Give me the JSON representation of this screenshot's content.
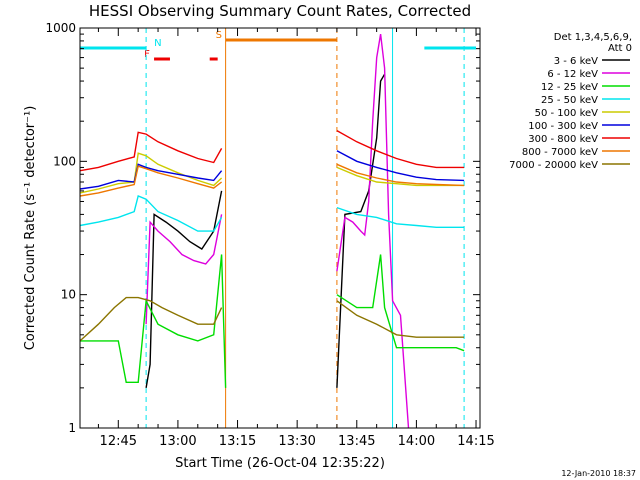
{
  "chart_data": {
    "type": "line",
    "title": "HESSI Observing Summary Count Rates, Corrected",
    "xlabel": "Start Time (26-Oct-04 12:35:22)",
    "ylabel": "Corrected Count Rate (s⁻¹ detector⁻¹)",
    "y_scale": "log",
    "ylim": [
      1,
      1000
    ],
    "xlim": [
      "12:35:22",
      "14:16"
    ],
    "x_ticks": [
      "12:45",
      "13:00",
      "13:15",
      "13:30",
      "13:45",
      "14:00",
      "14:15"
    ],
    "y_ticks": [
      "1",
      "10",
      "100",
      "1000"
    ],
    "legend_header": [
      "Det 1,3,4,5,6,9,",
      "Att 0"
    ],
    "legend_position": "right",
    "timestamp": "12-Jan-2010 18:37",
    "flags": [
      {
        "label": "N",
        "color": "#00e5ee",
        "segments": [
          [
            "12:35:22",
            "12:52"
          ],
          [
            "14:02",
            "14:15"
          ]
        ]
      },
      {
        "label": "F",
        "color": "#ee0000",
        "segments": [
          [
            "12:54",
            "12:58"
          ],
          [
            "13:08",
            "13:10"
          ]
        ]
      },
      {
        "label": "S",
        "color": "#ee7700",
        "segments": [
          [
            "13:12",
            "13:40"
          ]
        ]
      }
    ],
    "markers": [
      {
        "time": "12:35:22",
        "color": "#00e5ee",
        "style": "solid"
      },
      {
        "time": "12:52",
        "color": "#00e5ee",
        "style": "dashed"
      },
      {
        "time": "13:12",
        "color": "#ee7700",
        "style": "solid"
      },
      {
        "time": "13:40",
        "color": "#ee7700",
        "style": "dashed"
      },
      {
        "time": "13:54",
        "color": "#00e5ee",
        "style": "solid"
      },
      {
        "time": "14:12",
        "color": "#00e5ee",
        "style": "dashed"
      }
    ],
    "series": [
      {
        "name": "3 - 6 keV",
        "color": "#000000",
        "segments": [
          [
            [
              "12:52",
              2
            ],
            [
              "12:53",
              3
            ],
            [
              "12:54",
              40
            ],
            [
              "12:57",
              35
            ],
            [
              "13:00",
              30
            ],
            [
              "13:03",
              25
            ],
            [
              "13:06",
              22
            ],
            [
              "13:09",
              30
            ],
            [
              "13:11",
              60
            ]
          ],
          [
            [
              "13:40",
              2
            ],
            [
              "13:42",
              40
            ],
            [
              "13:46",
              42
            ],
            [
              "13:48",
              60
            ],
            [
              "13:50",
              150
            ],
            [
              "13:51",
              400
            ],
            [
              "13:52",
              450
            ]
          ]
        ]
      },
      {
        "name": "6 - 12 keV",
        "color": "#dd00dd",
        "segments": [
          [
            [
              "12:52",
              6
            ],
            [
              "12:53",
              35
            ],
            [
              "12:55",
              30
            ],
            [
              "12:58",
              25
            ],
            [
              "13:01",
              20
            ],
            [
              "13:04",
              18
            ],
            [
              "13:07",
              17
            ],
            [
              "13:09",
              20
            ],
            [
              "13:11",
              40
            ]
          ],
          [
            [
              "13:40",
              15
            ],
            [
              "13:42",
              38
            ],
            [
              "13:44",
              35
            ],
            [
              "13:46",
              30
            ],
            [
              "13:47",
              28
            ],
            [
              "13:48",
              50
            ],
            [
              "13:49",
              200
            ],
            [
              "13:50",
              600
            ],
            [
              "13:51",
              900
            ],
            [
              "13:52",
              500
            ],
            [
              "13:53",
              40
            ],
            [
              "13:54",
              9
            ],
            [
              "13:56",
              7
            ],
            [
              "13:58",
              1
            ]
          ]
        ]
      },
      {
        "name": "12 - 25 keV",
        "color": "#00dd00",
        "segments": [
          [
            [
              "12:35:22",
              4.5
            ],
            [
              "12:40",
              4.5
            ],
            [
              "12:45",
              4.5
            ],
            [
              "12:47",
              2.2
            ],
            [
              "12:50",
              2.2
            ],
            [
              "12:52",
              9
            ],
            [
              "12:55",
              6
            ],
            [
              "13:00",
              5
            ],
            [
              "13:05",
              4.5
            ],
            [
              "13:09",
              5
            ],
            [
              "13:11",
              20
            ],
            [
              "13:12",
              2
            ]
          ],
          [
            [
              "13:40",
              10
            ],
            [
              "13:45",
              8
            ],
            [
              "13:49",
              8
            ],
            [
              "13:51",
              20
            ],
            [
              "13:52",
              8
            ],
            [
              "13:55",
              4
            ],
            [
              "14:00",
              4
            ],
            [
              "14:05",
              4
            ],
            [
              "14:10",
              4
            ],
            [
              "14:12",
              3.8
            ]
          ]
        ]
      },
      {
        "name": "25 - 50 keV",
        "color": "#00e5ee",
        "segments": [
          [
            [
              "12:35:22",
              33
            ],
            [
              "12:40",
              35
            ],
            [
              "12:45",
              38
            ],
            [
              "12:49",
              42
            ],
            [
              "12:50",
              55
            ],
            [
              "12:52",
              52
            ],
            [
              "12:55",
              42
            ],
            [
              "13:00",
              36
            ],
            [
              "13:05",
              30
            ],
            [
              "13:09",
              30
            ],
            [
              "13:11",
              38
            ]
          ],
          [
            [
              "13:40",
              45
            ],
            [
              "13:45",
              40
            ],
            [
              "13:50",
              38
            ],
            [
              "13:55",
              34
            ],
            [
              "14:00",
              33
            ],
            [
              "14:05",
              32
            ],
            [
              "14:12",
              32
            ]
          ]
        ]
      },
      {
        "name": "50 - 100 keV",
        "color": "#cccc00",
        "segments": [
          [
            [
              "12:35:22",
              58
            ],
            [
              "12:40",
              62
            ],
            [
              "12:45",
              68
            ],
            [
              "12:49",
              70
            ],
            [
              "12:50",
              115
            ],
            [
              "12:52",
              110
            ],
            [
              "12:55",
              95
            ],
            [
              "13:00",
              82
            ],
            [
              "13:05",
              72
            ],
            [
              "13:09",
              66
            ],
            [
              "13:11",
              75
            ]
          ],
          [
            [
              "13:40",
              90
            ],
            [
              "13:45",
              78
            ],
            [
              "13:50",
              70
            ],
            [
              "13:55",
              68
            ],
            [
              "14:00",
              66
            ],
            [
              "14:05",
              66
            ],
            [
              "14:12",
              66
            ]
          ]
        ]
      },
      {
        "name": "100 - 300 keV",
        "color": "#0000dd",
        "segments": [
          [
            [
              "12:35:22",
              62
            ],
            [
              "12:40",
              65
            ],
            [
              "12:45",
              72
            ],
            [
              "12:49",
              70
            ],
            [
              "12:50",
              95
            ],
            [
              "12:52",
              90
            ],
            [
              "12:55",
              85
            ],
            [
              "13:00",
              80
            ],
            [
              "13:05",
              75
            ],
            [
              "13:09",
              72
            ],
            [
              "13:11",
              85
            ]
          ],
          [
            [
              "13:40",
              120
            ],
            [
              "13:45",
              100
            ],
            [
              "13:50",
              90
            ],
            [
              "13:55",
              82
            ],
            [
              "14:00",
              76
            ],
            [
              "14:05",
              73
            ],
            [
              "14:12",
              72
            ]
          ]
        ]
      },
      {
        "name": "300 - 800 keV",
        "color": "#ee0000",
        "segments": [
          [
            [
              "12:35:22",
              85
            ],
            [
              "12:40",
              90
            ],
            [
              "12:45",
              100
            ],
            [
              "12:49",
              108
            ],
            [
              "12:50",
              165
            ],
            [
              "12:52",
              160
            ],
            [
              "12:55",
              140
            ],
            [
              "13:00",
              120
            ],
            [
              "13:05",
              105
            ],
            [
              "13:09",
              98
            ],
            [
              "13:11",
              125
            ]
          ],
          [
            [
              "13:40",
              170
            ],
            [
              "13:45",
              140
            ],
            [
              "13:50",
              120
            ],
            [
              "13:55",
              105
            ],
            [
              "14:00",
              95
            ],
            [
              "14:05",
              90
            ],
            [
              "14:12",
              90
            ]
          ]
        ]
      },
      {
        "name": "800 - 7000 keV",
        "color": "#ee7700",
        "segments": [
          [
            [
              "12:35:22",
              55
            ],
            [
              "12:40",
              58
            ],
            [
              "12:45",
              63
            ],
            [
              "12:49",
              67
            ],
            [
              "12:50",
              92
            ],
            [
              "12:52",
              88
            ],
            [
              "12:55",
              82
            ],
            [
              "13:00",
              75
            ],
            [
              "13:05",
              68
            ],
            [
              "13:09",
              63
            ],
            [
              "13:11",
              70
            ]
          ],
          [
            [
              "13:40",
              95
            ],
            [
              "13:45",
              82
            ],
            [
              "13:50",
              75
            ],
            [
              "13:55",
              70
            ],
            [
              "14:00",
              68
            ],
            [
              "14:05",
              67
            ],
            [
              "14:12",
              66
            ]
          ]
        ]
      },
      {
        "name": "7000 - 20000 keV",
        "color": "#8b7500",
        "segments": [
          [
            [
              "12:35:22",
              4.5
            ],
            [
              "12:40",
              6
            ],
            [
              "12:44",
              8
            ],
            [
              "12:47",
              9.5
            ],
            [
              "12:50",
              9.5
            ],
            [
              "12:53",
              9
            ],
            [
              "12:56",
              8
            ],
            [
              "13:00",
              7
            ],
            [
              "13:05",
              6
            ],
            [
              "13:09",
              6
            ],
            [
              "13:11",
              8
            ]
          ],
          [
            [
              "13:40",
              9
            ],
            [
              "13:45",
              7
            ],
            [
              "13:50",
              6
            ],
            [
              "13:55",
              5
            ],
            [
              "14:00",
              4.8
            ],
            [
              "14:05",
              4.8
            ],
            [
              "14:12",
              4.8
            ]
          ]
        ]
      }
    ]
  }
}
